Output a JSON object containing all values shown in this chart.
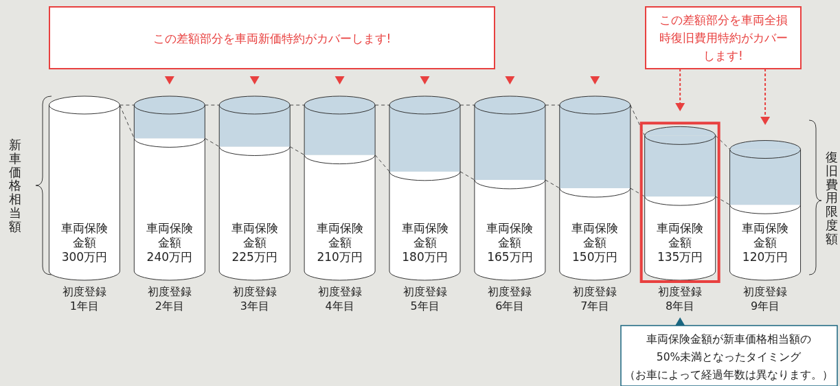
{
  "chart_data": {
    "type": "bar",
    "stacked": true,
    "categories": [
      "初度登録1年目",
      "初度登録2年目",
      "初度登録3年目",
      "初度登録4年目",
      "初度登録5年目",
      "初度登録6年目",
      "初度登録7年目",
      "初度登録8年目",
      "初度登録9年目"
    ],
    "series": [
      {
        "color": "#ffffff",
        "values": [
          300,
          240,
          225,
          210,
          180,
          165,
          150,
          135,
          120
        ],
        "value_labels": [
          "車両保険金額300万円",
          "車両保険金額240万円",
          "車両保険金額225万円",
          "車両保険金額210万円",
          "車両保険金額180万円",
          "車両保険金額165万円",
          "車両保険金額150万円",
          "車両保険金額135万円",
          "車両保険金額120万円"
        ]
      },
      {
        "color": "#c5d7e3",
        "values": [
          null,
          60,
          75,
          90,
          120,
          135,
          150,
          110,
          100
        ]
      }
    ],
    "annotations": [
      "この差額部分を車両新価特約がカバーします!",
      "この差額部分を車両全損時復旧費用特約がカバーします!",
      "新車価格相当額",
      "復旧費用限度額",
      "車両保険金額が新車価格相当額の50%未満となったタイミング",
      "（お車によって経過年数は異なります。）"
    ]
  }
}
